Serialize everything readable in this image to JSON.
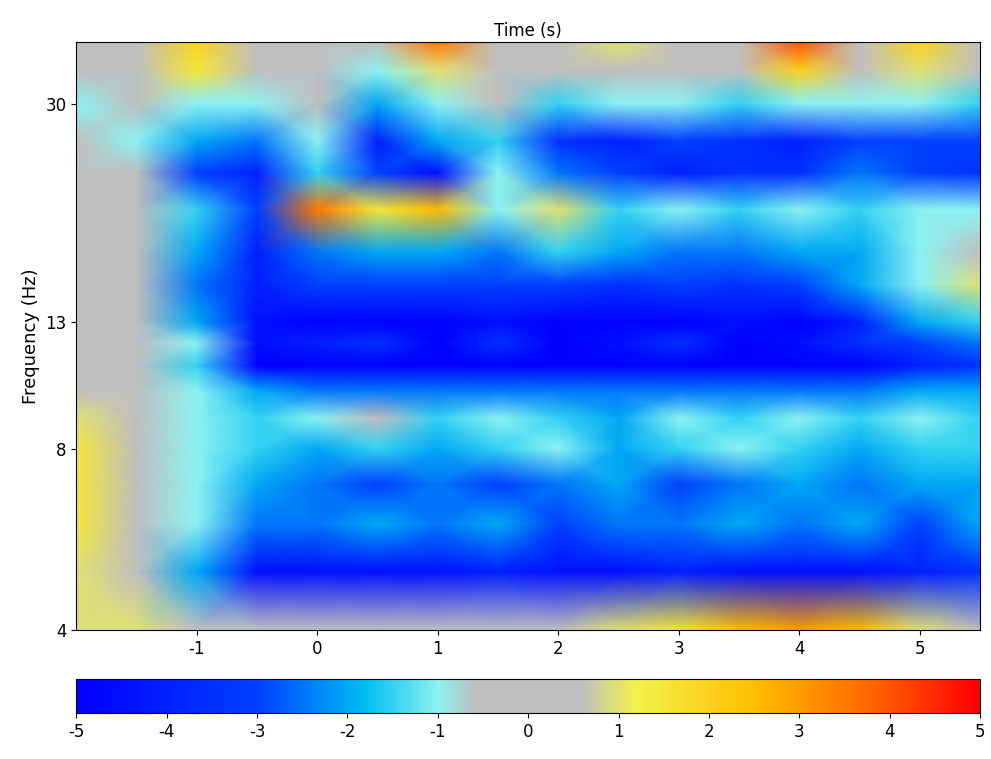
{
  "chart_data": {
    "type": "heatmap",
    "x_label": "Time (s)",
    "y_label": "Frequency (Hz)",
    "log": "y",
    "x": [
      -2,
      -1.5,
      -1,
      -0.5,
      0,
      0.5,
      1,
      1.5,
      2,
      2.5,
      3,
      3.5,
      4,
      4.5,
      5,
      5.5
    ],
    "y": [
      4,
      5,
      6,
      7,
      8,
      9,
      10,
      11,
      12,
      13,
      15,
      17,
      20,
      23,
      26,
      30,
      34,
      38
    ],
    "xlim": [
      -2,
      5.5
    ],
    "ylim": [
      4,
      38
    ],
    "xticks": [
      -1,
      0,
      1,
      2,
      3,
      4,
      5
    ],
    "yticks": [
      4,
      8,
      13,
      30
    ],
    "cells": [
      [
        1,
        1,
        0.5,
        0.5,
        0.5,
        0.5,
        0.5,
        0.5,
        0.5,
        1,
        1.5,
        2.5,
        3,
        2.5,
        1,
        0.5
      ],
      [
        1,
        0.5,
        -2,
        -4.5,
        -4.5,
        -4.5,
        -4.5,
        -4,
        -4.5,
        -4.5,
        -4,
        -4.5,
        -4.5,
        -4.5,
        -4,
        -3.5
      ],
      [
        1.5,
        0.5,
        -1,
        -2.5,
        -2.5,
        -2,
        -2.5,
        -2,
        -3,
        -2.5,
        -2.5,
        -2,
        -2.5,
        -2,
        -3,
        -2
      ],
      [
        1.5,
        0.5,
        -1,
        -2,
        -2.5,
        -3,
        -2.5,
        -3,
        -2.5,
        -2,
        -3,
        -2.5,
        -2,
        -2.5,
        -2,
        -2
      ],
      [
        1.5,
        0.5,
        -1,
        -1.5,
        -2,
        -1.5,
        -2,
        -1.5,
        -1,
        -2,
        -1.5,
        -1,
        -1.5,
        -2,
        -1.5,
        -1.5
      ],
      [
        1,
        0,
        -1,
        -1.5,
        -1,
        -0.5,
        -1.5,
        -1,
        -1.5,
        -2,
        -1,
        -1.5,
        -1,
        -1.5,
        -1,
        -1.5
      ],
      [
        0.5,
        0,
        -1,
        -2,
        -2.5,
        -2.5,
        -2.5,
        -2.5,
        -2.5,
        -2.5,
        -2.5,
        -2.5,
        -2.5,
        -2.5,
        -2,
        -2
      ],
      [
        0,
        0,
        -1.5,
        -5,
        -5,
        -5,
        -5,
        -5,
        -5,
        -5,
        -5,
        -5,
        -5,
        -5,
        -4,
        -3.5
      ],
      [
        0,
        0,
        -1,
        -4.5,
        -4,
        -3.5,
        -5,
        -3.5,
        -5,
        -4.5,
        -3.5,
        -5,
        -4.5,
        -3.5,
        -3,
        -2.5
      ],
      [
        0,
        0,
        -2,
        -4.5,
        -5,
        -5,
        -5,
        -4.5,
        -5,
        -5,
        -5,
        -4.5,
        -5,
        -4,
        -2,
        -1.5
      ],
      [
        0,
        0,
        -2.5,
        -4,
        -3,
        -3,
        -3,
        -3,
        -3,
        -3.5,
        -3,
        -3.5,
        -3,
        -2,
        -1,
        1
      ],
      [
        0,
        0,
        -2,
        -4,
        -2.5,
        -2,
        -2,
        -2.5,
        -1.5,
        -2,
        -2.5,
        -2.5,
        -2,
        -2,
        -1,
        0
      ],
      [
        0.5,
        0,
        -1.5,
        -3,
        3.5,
        1.5,
        2.5,
        -1,
        1,
        -1.5,
        -1,
        -1.5,
        -1,
        -1.5,
        -1,
        -1
      ],
      [
        0,
        0,
        -3,
        -4,
        -1.5,
        -3,
        -4.5,
        -1,
        -2.5,
        -3,
        -4,
        -3.5,
        -3.5,
        -2.5,
        -3,
        -3.5
      ],
      [
        -0.5,
        -1,
        -2,
        -2.5,
        -1,
        -4,
        -2,
        -1.5,
        -3.5,
        -4,
        -3,
        -3.5,
        -4,
        -3,
        -3,
        -3
      ],
      [
        -1,
        0,
        -1,
        -1,
        -0.5,
        -2,
        -1,
        -0.5,
        -1.5,
        -1,
        -1,
        -1.5,
        -1,
        -1,
        -1,
        -1.5
      ],
      [
        0.5,
        0,
        1.5,
        0,
        0.5,
        -1,
        1,
        0,
        0.5,
        0,
        0.5,
        0,
        2,
        -0.5,
        1,
        -0.5
      ],
      [
        0,
        0.5,
        2,
        0,
        0,
        0,
        3.5,
        0.5,
        0,
        1,
        0,
        0.5,
        4,
        0,
        2,
        0
      ]
    ],
    "colorbar": {
      "range": [
        -5,
        5
      ],
      "ticks": [
        -5,
        -4,
        -3,
        -2,
        -1,
        0,
        1,
        2,
        3,
        4,
        5
      ]
    }
  }
}
